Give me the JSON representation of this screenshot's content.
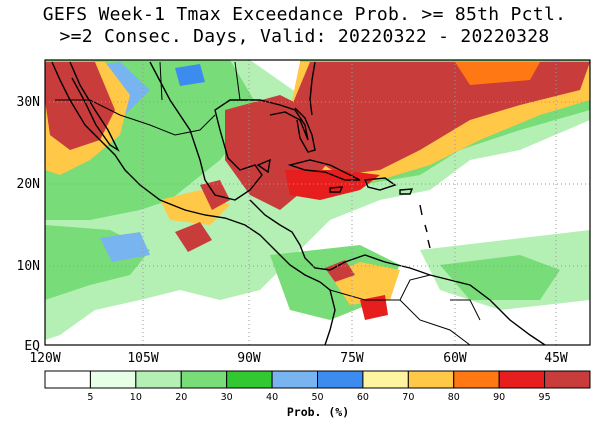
{
  "title_line1": "GEFS Week-1 Tmax Exceedance Prob. >= 85th Pctl.",
  "title_line2": ">=2 Consec. Days, Valid: 20220322 - 20220328",
  "lat_labels": [
    "30N",
    "20N",
    "10N",
    "EQ"
  ],
  "lon_labels": [
    "120W",
    "105W",
    "90W",
    "75W",
    "60W",
    "45W"
  ],
  "colorbar": {
    "colors": [
      "#ffffff",
      "#e6ffe6",
      "#b4f0b4",
      "#78dc78",
      "#32c832",
      "#78b4f0",
      "#3c8cf0",
      "#fff5a0",
      "#ffc846",
      "#ff7814",
      "#e61e1e",
      "#c83c3c"
    ],
    "tick_labels": [
      "5",
      "10",
      "20",
      "30",
      "40",
      "50",
      "60",
      "70",
      "80",
      "90",
      "95"
    ],
    "units": "Prob. (%)"
  },
  "colors": {
    "hot": "#c83c3c",
    "orange": "#ff7814",
    "green": "#78dc78",
    "light_green": "#b4f0b4",
    "blue": "#78b4f0",
    "coast": "#000000",
    "grid": "#9a9a9a"
  }
}
